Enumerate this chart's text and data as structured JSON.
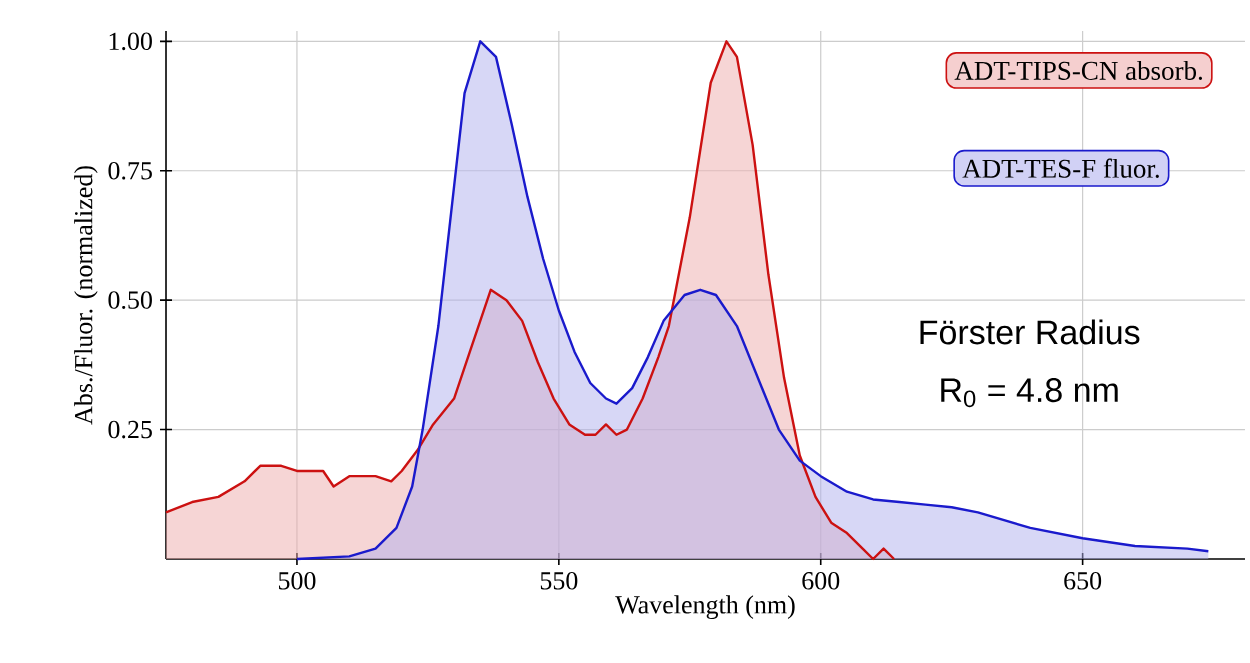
{
  "chart_data": {
    "type": "area",
    "xlabel": "Wavelength (nm)",
    "ylabel": "Abs./Fluor. (normalized)",
    "xlim": [
      475,
      681
    ],
    "ylim": [
      0,
      1.02
    ],
    "xticks": [
      500,
      550,
      600,
      650
    ],
    "yticks": [
      {
        "value": 0.25,
        "label": "0.25"
      },
      {
        "value": 0.5,
        "label": "0.50"
      },
      {
        "value": 0.75,
        "label": "0.75"
      },
      {
        "value": 1.0,
        "label": "1.00"
      }
    ],
    "grid": true,
    "legend": "top right",
    "annotations": [
      "Förster Radius",
      "R$_{0}$ = 4.8 nm"
    ],
    "series": [
      {
        "name": "ADT-TIPS-CN absorb.",
        "color": "#cc1111",
        "x": [
          475,
          480,
          485,
          490,
          493,
          497,
          500,
          505,
          507,
          510,
          515,
          518,
          520,
          523,
          526,
          530,
          533,
          537,
          540,
          543,
          546,
          549,
          552,
          555,
          557,
          559,
          561,
          563,
          566,
          569,
          571,
          575,
          579,
          582,
          584,
          587,
          590,
          593,
          596,
          599,
          602,
          605,
          608,
          610,
          612,
          614
        ],
        "values": [
          0.09,
          0.11,
          0.12,
          0.15,
          0.18,
          0.18,
          0.17,
          0.17,
          0.14,
          0.16,
          0.16,
          0.15,
          0.17,
          0.21,
          0.26,
          0.31,
          0.4,
          0.52,
          0.5,
          0.46,
          0.38,
          0.31,
          0.26,
          0.24,
          0.24,
          0.26,
          0.24,
          0.25,
          0.31,
          0.39,
          0.45,
          0.66,
          0.92,
          1.0,
          0.97,
          0.8,
          0.55,
          0.35,
          0.2,
          0.12,
          0.07,
          0.05,
          0.02,
          0.0,
          0.02,
          0.0
        ]
      },
      {
        "name": "ADT-TES-F fluor.",
        "color": "#1a1acc",
        "x": [
          500,
          510,
          515,
          519,
          522,
          524,
          527,
          530,
          532,
          535,
          538,
          541,
          544,
          547,
          550,
          553,
          556,
          559,
          561,
          564,
          567,
          570,
          574,
          577,
          580,
          584,
          588,
          592,
          596,
          600,
          605,
          610,
          615,
          620,
          625,
          630,
          640,
          650,
          660,
          670,
          674
        ],
        "values": [
          0.0,
          0.005,
          0.02,
          0.06,
          0.14,
          0.25,
          0.45,
          0.72,
          0.9,
          1.0,
          0.97,
          0.84,
          0.7,
          0.58,
          0.48,
          0.4,
          0.34,
          0.31,
          0.3,
          0.33,
          0.39,
          0.46,
          0.51,
          0.52,
          0.51,
          0.45,
          0.35,
          0.25,
          0.19,
          0.16,
          0.13,
          0.115,
          0.11,
          0.105,
          0.1,
          0.09,
          0.06,
          0.04,
          0.025,
          0.02,
          0.015
        ]
      }
    ]
  }
}
